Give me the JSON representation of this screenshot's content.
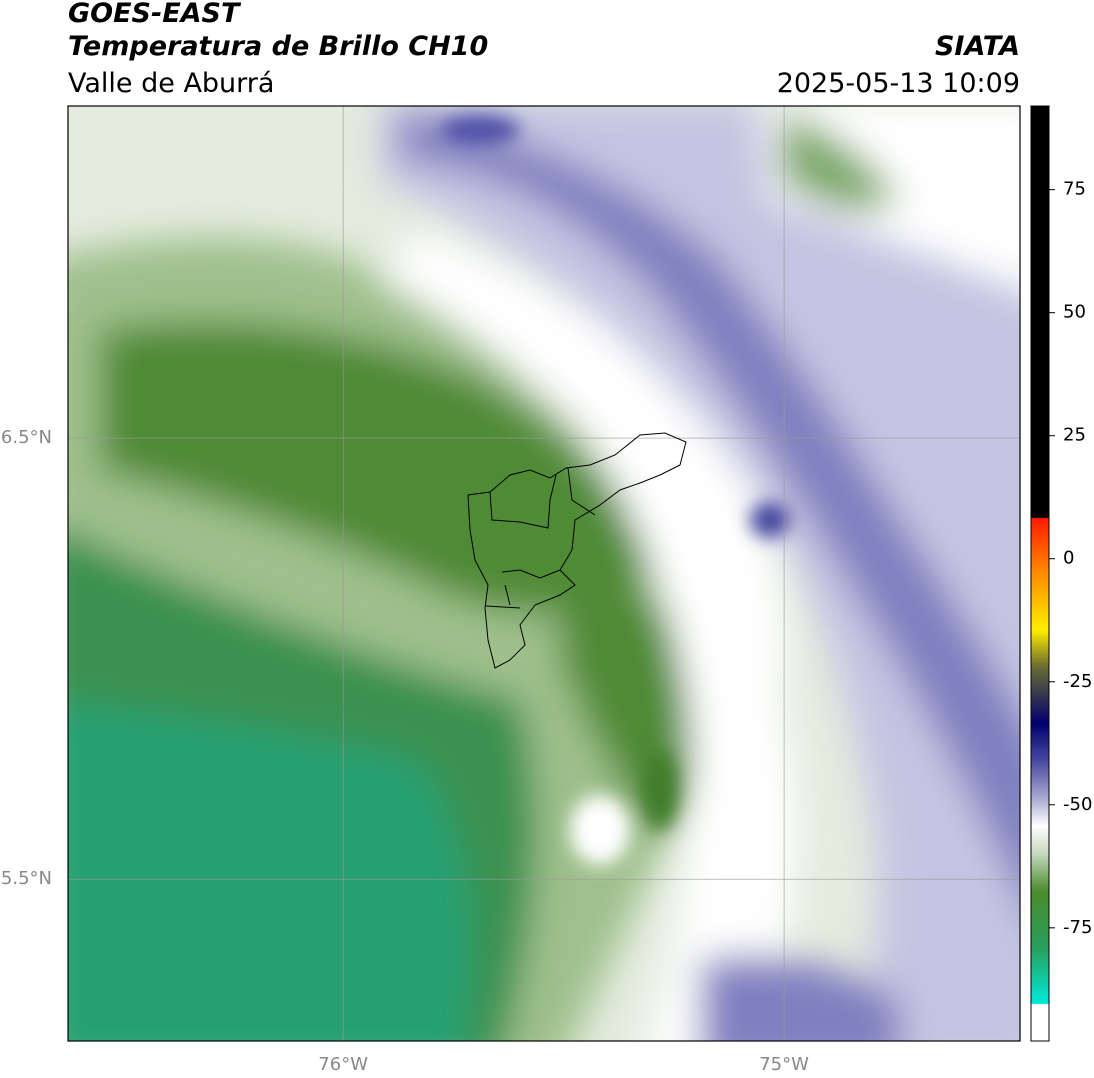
{
  "header": {
    "title": "GOES-EAST",
    "subtitle": "Temperatura de Brillo CH10",
    "region": "Valle de Aburrá",
    "source": "SIATA",
    "timestamp": "2025-05-13 10:09"
  },
  "map": {
    "xlim": [
      -76.624,
      -74.465
    ],
    "ylim": [
      5.133,
      7.253
    ],
    "xticks": [
      {
        "value": -76,
        "label": "76°W"
      },
      {
        "value": -75,
        "label": "75°W"
      }
    ],
    "yticks": [
      {
        "value": 6.5,
        "label": "6.5°N"
      },
      {
        "value": 5.5,
        "label": "5.5°N"
      }
    ],
    "grid": true
  },
  "colorbar": {
    "lim": [
      -98,
      92
    ],
    "ticks": [
      75,
      50,
      25,
      0,
      -25,
      -50,
      -75
    ]
  }
}
